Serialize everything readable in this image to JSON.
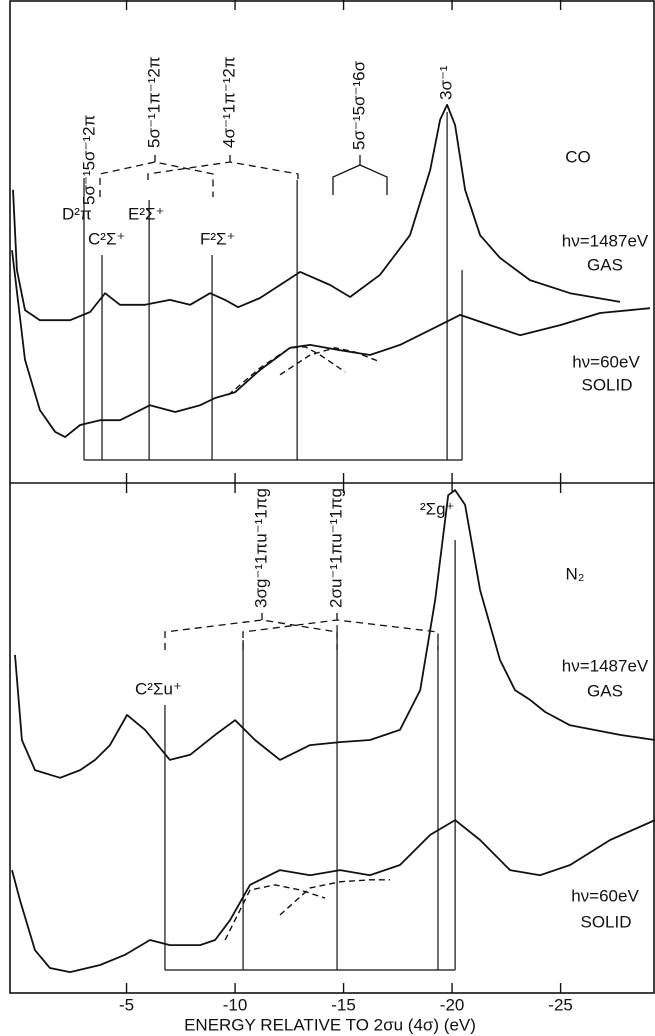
{
  "chart_data": [
    {
      "type": "line",
      "xlim": [
        0.37,
        -29.35
      ],
      "ylim": [
        0,
        10
      ],
      "xticks": [
        -5,
        -10,
        -15,
        -20,
        -25
      ],
      "series": [
        {
          "color": "#111111",
          "dash": false,
          "x": [
            0.23,
            0.05,
            -0.32,
            -1.01,
            -2.4,
            -3.32,
            -4.01,
            -4.7,
            -5.85,
            -7.0,
            -7.93,
            -8.85,
            -9.54,
            -10.14,
            -11.15,
            -13.0,
            -14.38,
            -15.3,
            -16.68,
            -18.06,
            -18.99,
            -19.45,
            -19.77,
            -20.14,
            -20.6,
            -21.29,
            -22.21,
            -23.59,
            -25.44,
            -27.74
          ],
          "values": [
            6.07,
            4.41,
            3.58,
            3.37,
            3.37,
            3.54,
            3.93,
            3.69,
            3.69,
            3.79,
            3.69,
            3.93,
            3.79,
            3.64,
            3.83,
            4.37,
            4.1,
            3.85,
            4.31,
            5.13,
            6.48,
            7.52,
            7.83,
            7.41,
            6.07,
            5.13,
            4.66,
            4.2,
            3.93,
            3.75
          ]
        },
        {
          "color": "#111111",
          "dash": false,
          "x": [
            0.28,
            -0.32,
            -1.01,
            -1.71,
            -2.17,
            -2.86,
            -3.78,
            -4.7,
            -6.08,
            -7.24,
            -8.39,
            -9.08,
            -10.0,
            -11.15,
            -12.53,
            -13.46,
            -14.84,
            -16.22,
            -17.6,
            -18.99,
            -20.37,
            -21.75,
            -23.13,
            -24.98,
            -26.82,
            -29.12
          ],
          "values": [
            4.82,
            2.55,
            1.51,
            1.06,
            0.95,
            1.2,
            1.3,
            1.3,
            1.61,
            1.47,
            1.61,
            1.76,
            1.88,
            2.34,
            2.8,
            2.86,
            2.75,
            2.65,
            2.86,
            3.17,
            3.48,
            3.27,
            3.06,
            3.27,
            3.52,
            3.62
          ]
        },
        {
          "color": "#111111",
          "dash": true,
          "x": [
            -9.68,
            -11.15,
            -12.53,
            -13.23,
            -13.92,
            -15.07
          ],
          "values": [
            1.82,
            2.38,
            2.8,
            2.82,
            2.65,
            2.3
          ]
        },
        {
          "color": "#111111",
          "dash": true,
          "x": [
            -12.07,
            -13.46,
            -14.61,
            -15.53,
            -16.68
          ],
          "values": [
            2.24,
            2.65,
            2.8,
            2.71,
            2.51
          ]
        }
      ],
      "lines": [
        {
          "x": -3.04,
          "label": "D²π"
        },
        {
          "x": -3.87,
          "label": "C²Σ⁺"
        },
        {
          "x": -6.04,
          "label": "E²Σ⁺"
        },
        {
          "x": -8.94,
          "label": "F²Σ⁺"
        },
        {
          "x": -12.86
        },
        {
          "x": -19.77,
          "label": "3σ⁻¹"
        },
        {
          "x": -20.46
        }
      ],
      "assignments": [
        {
          "label": "5σ⁻¹5σ⁻¹2π"
        },
        {
          "label": "5σ⁻¹1π⁻¹2π"
        },
        {
          "label": "4σ⁻¹1π⁻¹2π"
        },
        {
          "label": "5σ⁻¹5σ⁻¹6σ"
        }
      ],
      "annotations": [
        "CO",
        "hν=1487eV",
        "GAS",
        "hν=60eV",
        "SOLID"
      ]
    },
    {
      "type": "line",
      "xlim": [
        0.37,
        -29.35
      ],
      "ylim": [
        0,
        10
      ],
      "xticks": [
        -5,
        -10,
        -15,
        -20,
        -25
      ],
      "xlabel": "ENERGY RELATIVE TO 2σu (4σ) (eV)",
      "series": [
        {
          "color": "#111111",
          "dash": false,
          "x": [
            0.14,
            -0.18,
            -0.78,
            -1.94,
            -2.86,
            -3.55,
            -4.24,
            -5.02,
            -5.85,
            -7.0,
            -7.93,
            -9.08,
            -10.0,
            -10.92,
            -12.07,
            -13.46,
            -14.84,
            -16.22,
            -17.6,
            -18.53,
            -19.22,
            -19.82,
            -20.14,
            -20.6,
            -21.29,
            -22.21,
            -22.9,
            -23.59,
            -24.29,
            -25.44,
            -27.74,
            -29.35
          ],
          "values": [
            6.63,
            4.96,
            4.37,
            4.22,
            4.37,
            4.57,
            4.86,
            5.45,
            5.16,
            4.57,
            4.67,
            5.06,
            5.35,
            4.96,
            4.57,
            4.86,
            4.92,
            4.96,
            5.16,
            5.94,
            7.71,
            9.76,
            9.86,
            9.57,
            7.9,
            6.53,
            5.94,
            5.75,
            5.51,
            5.25,
            5.06,
            4.96
          ]
        },
        {
          "color": "#111111",
          "dash": false,
          "x": [
            0.28,
            -0.09,
            -0.78,
            -1.47,
            -2.4,
            -3.78,
            -4.93,
            -6.08,
            -7.0,
            -8.39,
            -9.08,
            -9.77,
            -10.69,
            -12.07,
            -13.46,
            -14.84,
            -16.22,
            -17.6,
            -18.99,
            -20.14,
            -21.29,
            -22.67,
            -24.06,
            -25.44,
            -27.28,
            -29.35
          ],
          "values": [
            2.41,
            1.82,
            0.84,
            0.49,
            0.41,
            0.55,
            0.75,
            1.04,
            0.94,
            0.94,
            1.04,
            1.43,
            2.12,
            2.41,
            2.31,
            2.41,
            2.31,
            2.51,
            3.1,
            3.39,
            3.0,
            2.41,
            2.31,
            2.51,
            3.0,
            3.39
          ]
        },
        {
          "color": "#111111",
          "dash": true,
          "x": [
            -9.54,
            -10.69,
            -11.84,
            -13.0,
            -14.15
          ],
          "values": [
            1.04,
            2.02,
            2.12,
            2.02,
            1.86
          ]
        },
        {
          "color": "#111111",
          "dash": true,
          "x": [
            -12.07,
            -13.46,
            -14.84,
            -16.22,
            -17.14
          ],
          "values": [
            1.53,
            2.06,
            2.18,
            2.22,
            2.22
          ]
        }
      ],
      "lines": [
        {
          "x": -6.77,
          "label": "C²Σu⁺"
        },
        {
          "x": -10.37
        },
        {
          "x": -14.7
        },
        {
          "x": -19.35
        },
        {
          "x": -20.14,
          "label": "²Σg⁺"
        }
      ],
      "assignments": [
        {
          "label": "3σg⁻¹1πu⁻¹1πg"
        },
        {
          "label": "2σu⁻¹1πu⁻¹1πg"
        }
      ],
      "annotations": [
        "N₂",
        "hν=1487eV",
        "GAS",
        "hν=60eV",
        "SOLID"
      ]
    }
  ]
}
